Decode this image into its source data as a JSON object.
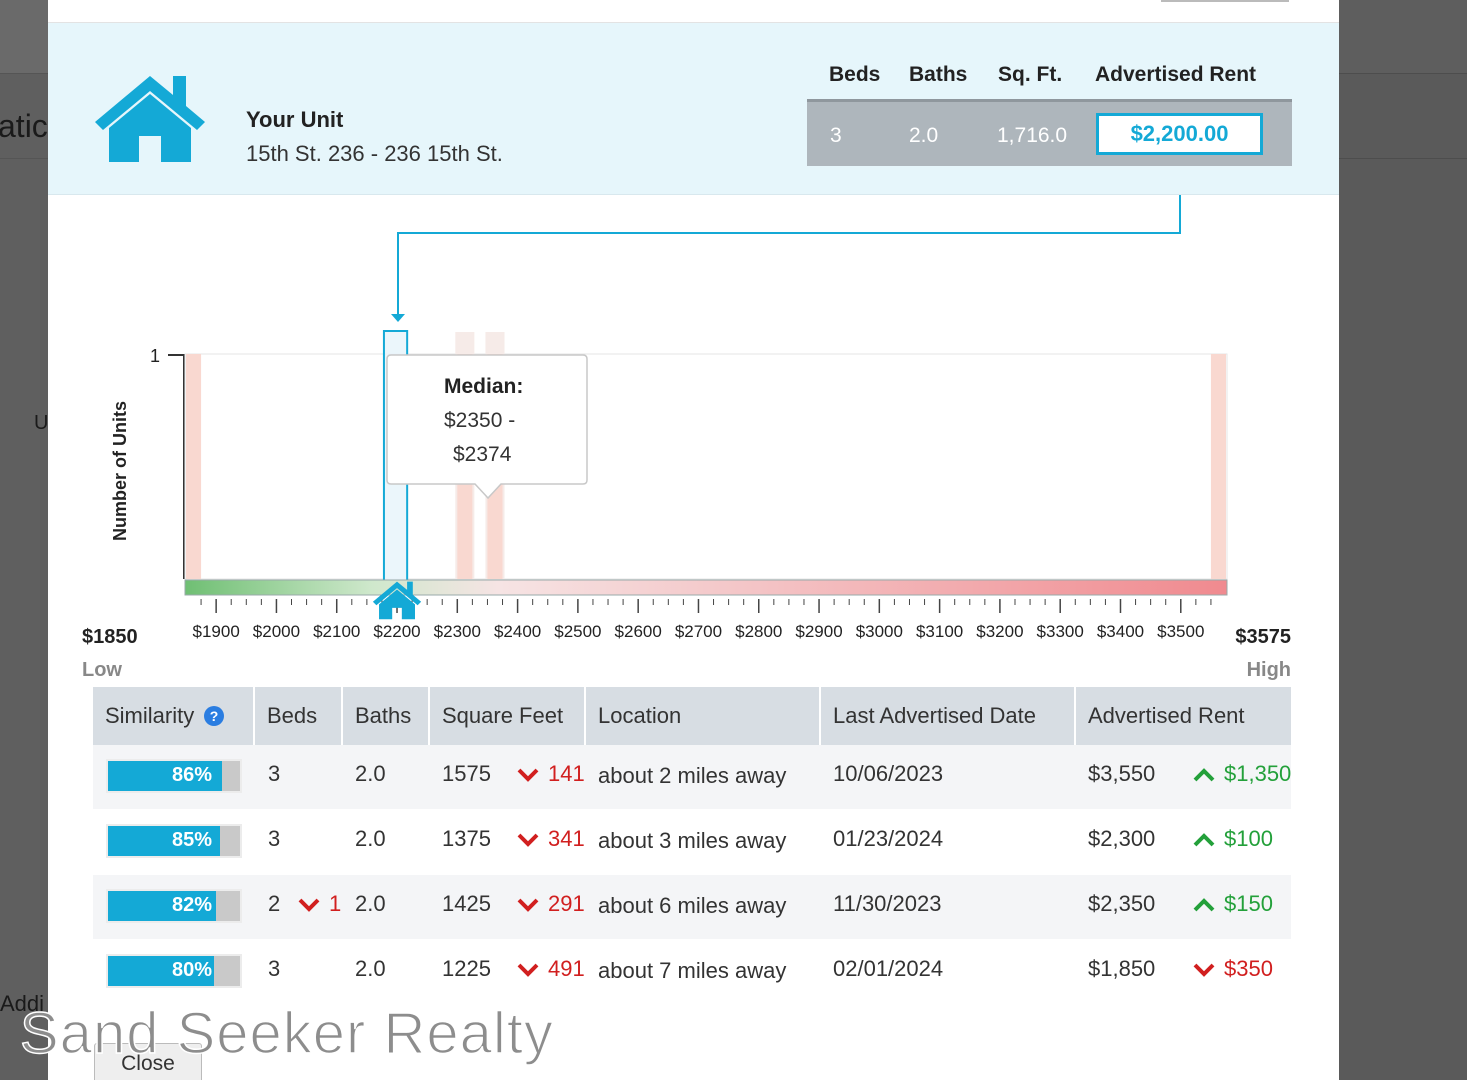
{
  "background": {
    "fragment_1": "atic",
    "fragment_2": "U",
    "fragment_3": "Addi"
  },
  "your_unit": {
    "title": "Your Unit",
    "address": "15th St. 236 - 236 15th St.",
    "headers": {
      "beds": "Beds",
      "baths": "Baths",
      "sqft": "Sq. Ft.",
      "rent": "Advertised Rent"
    },
    "beds": "3",
    "baths": "2.0",
    "sqft": "1,716.0",
    "rent": "$2,200.00",
    "icon": "house-icon"
  },
  "chart": {
    "y_label": "Number of Units",
    "y_max_label": "1",
    "tooltip": {
      "title": "Median:",
      "line1": "$2350 -",
      "line2": "$2374"
    },
    "low_value": "$1850",
    "low_label": "Low",
    "high_value": "$3575",
    "high_label": "High",
    "ticks": [
      "$1900",
      "$2000",
      "$2100",
      "$2200",
      "$2300",
      "$2400",
      "$2500",
      "$2600",
      "$2700",
      "$2800",
      "$2900",
      "$3000",
      "$3100",
      "$3200",
      "$3300",
      "$3400",
      "$3500"
    ],
    "colors": {
      "accent": "#14a9d6",
      "bar": "#f9d8d0",
      "highlight": "#e7f4fa"
    }
  },
  "chart_data": {
    "type": "bar",
    "x_min": 1850,
    "x_max": 3575,
    "y_max": 1,
    "ylabel": "Number of Units",
    "bars": [
      {
        "from": 1850,
        "to": 1875,
        "count": 1
      },
      {
        "from": 2300,
        "to": 2325,
        "count": 1
      },
      {
        "from": 2350,
        "to": 2375,
        "count": 1
      },
      {
        "from": 3550,
        "to": 3575,
        "count": 1
      }
    ],
    "median_range": [
      2350,
      2374
    ],
    "your_unit_rent": 2200,
    "highlight_range": [
      2175,
      2250
    ]
  },
  "table": {
    "headers": [
      "Similarity",
      "Beds",
      "Baths",
      "Square Feet",
      "Location",
      "Last Advertised Date",
      "Advertised Rent"
    ],
    "rows": [
      {
        "similarity": "86%",
        "sim_value": 0.86,
        "beds": "3",
        "beds_delta": "",
        "baths": "2.0",
        "sqft": "1575",
        "sqft_delta": "141",
        "location": "about 2 miles away",
        "date": "10/06/2023",
        "rent": "$3,550",
        "rent_delta": "$1,350",
        "rent_dir": "up"
      },
      {
        "similarity": "85%",
        "sim_value": 0.85,
        "beds": "3",
        "beds_delta": "",
        "baths": "2.0",
        "sqft": "1375",
        "sqft_delta": "341",
        "location": "about 3 miles away",
        "date": "01/23/2024",
        "rent": "$2,300",
        "rent_delta": "$100",
        "rent_dir": "up"
      },
      {
        "similarity": "82%",
        "sim_value": 0.82,
        "beds": "2",
        "beds_delta": "1",
        "baths": "2.0",
        "sqft": "1425",
        "sqft_delta": "291",
        "location": "about 6 miles away",
        "date": "11/30/2023",
        "rent": "$2,350",
        "rent_delta": "$150",
        "rent_dir": "up"
      },
      {
        "similarity": "80%",
        "sim_value": 0.8,
        "beds": "3",
        "beds_delta": "",
        "baths": "2.0",
        "sqft": "1225",
        "sqft_delta": "491",
        "location": "about 7 miles away",
        "date": "02/01/2024",
        "rent": "$1,850",
        "rent_delta": "$350",
        "rent_dir": "down"
      }
    ]
  },
  "close_label": "Close",
  "watermark": "Sand Seeker Realty"
}
